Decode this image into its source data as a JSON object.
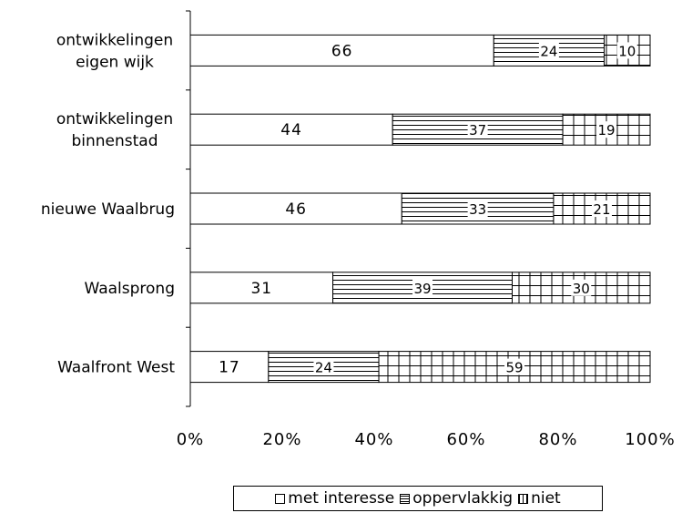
{
  "chart_data": {
    "type": "bar",
    "orientation": "horizontal",
    "stacked": "percent",
    "categories": [
      "ontwikkelingen eigen wijk",
      "ontwikkelingen binnenstad",
      "nieuwe Waalbrug",
      "Waalsprong",
      "Waalfront West"
    ],
    "category_lines": [
      [
        "ontwikkelingen",
        "eigen wijk"
      ],
      [
        "ontwikkelingen",
        "binnenstad"
      ],
      [
        "nieuwe Waalbrug"
      ],
      [
        "Waalsprong"
      ],
      [
        "Waalfront West"
      ]
    ],
    "series": [
      {
        "name": "met interesse",
        "pattern": "blank",
        "values": [
          66,
          44,
          46,
          31,
          17
        ]
      },
      {
        "name": "oppervlakkig",
        "pattern": "horizontal-lines",
        "values": [
          24,
          37,
          33,
          39,
          24
        ]
      },
      {
        "name": "niet",
        "pattern": "grid",
        "values": [
          10,
          19,
          21,
          30,
          59
        ]
      }
    ],
    "x_ticks": [
      "0%",
      "20%",
      "40%",
      "60%",
      "80%",
      "100%"
    ],
    "xlim": [
      0,
      100
    ],
    "legend_position": "bottom",
    "grid": false,
    "colors": {
      "fill": "#ffffff",
      "line": "#000000"
    }
  }
}
